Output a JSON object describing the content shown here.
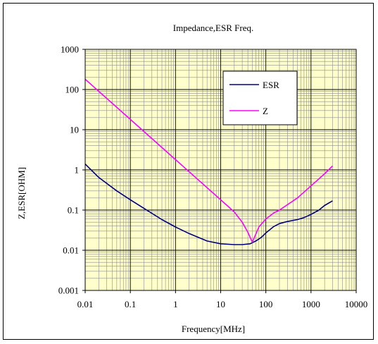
{
  "chart_data": {
    "type": "line",
    "title": "Impedance,ESR Freq.",
    "xlabel": "Frequency[MHz]",
    "ylabel": "Z,ESR[OHM]",
    "x_scale": "log",
    "y_scale": "log",
    "xlim": [
      0.01,
      10000
    ],
    "ylim": [
      0.001,
      1000
    ],
    "x_ticks": [
      "0.01",
      "0.1",
      "1",
      "10",
      "100",
      "1000",
      "10000"
    ],
    "y_ticks": [
      "1000",
      "100",
      "10",
      "1",
      "0.1",
      "0.01",
      "0.001"
    ],
    "grid": true,
    "legend_position": "top-right",
    "plot_background": "#ffffcc",
    "series": [
      {
        "name": "ESR",
        "color": "#000080",
        "points": [
          [
            0.01,
            1.4
          ],
          [
            0.02,
            0.65
          ],
          [
            0.05,
            0.3
          ],
          [
            0.1,
            0.18
          ],
          [
            0.2,
            0.11
          ],
          [
            0.5,
            0.058
          ],
          [
            1,
            0.038
          ],
          [
            2,
            0.026
          ],
          [
            5,
            0.017
          ],
          [
            10,
            0.0145
          ],
          [
            20,
            0.0138
          ],
          [
            30,
            0.0138
          ],
          [
            45,
            0.0145
          ],
          [
            60,
            0.017
          ],
          [
            80,
            0.021
          ],
          [
            100,
            0.027
          ],
          [
            150,
            0.039
          ],
          [
            200,
            0.046
          ],
          [
            300,
            0.052
          ],
          [
            500,
            0.058
          ],
          [
            700,
            0.065
          ],
          [
            1000,
            0.078
          ],
          [
            1500,
            0.1
          ],
          [
            2000,
            0.13
          ],
          [
            3000,
            0.17
          ]
        ]
      },
      {
        "name": "Z",
        "color": "#ff00ff",
        "points": [
          [
            0.01,
            180
          ],
          [
            0.1,
            18
          ],
          [
            1,
            1.8
          ],
          [
            10,
            0.18
          ],
          [
            20,
            0.09
          ],
          [
            30,
            0.05
          ],
          [
            40,
            0.028
          ],
          [
            50,
            0.016
          ],
          [
            55,
            0.02
          ],
          [
            70,
            0.038
          ],
          [
            100,
            0.06
          ],
          [
            150,
            0.085
          ],
          [
            200,
            0.1
          ],
          [
            500,
            0.2
          ],
          [
            1000,
            0.4
          ],
          [
            2000,
            0.8
          ],
          [
            3000,
            1.25
          ]
        ]
      }
    ]
  }
}
